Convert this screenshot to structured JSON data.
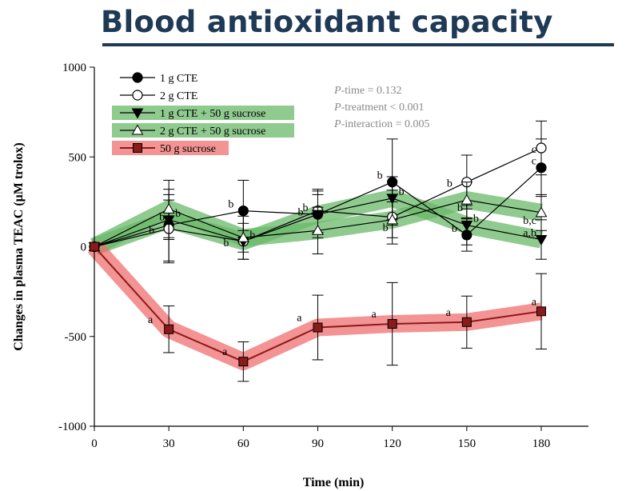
{
  "page": {
    "title": "Blood antioxidant capacity"
  },
  "chart_data": {
    "type": "line",
    "xlabel": "Time (min)",
    "ylabel": "Changes in plasma TEAC (μM trolox)",
    "x": [
      0,
      30,
      60,
      90,
      120,
      150,
      180
    ],
    "xlim": [
      0,
      197
    ],
    "ylim": [
      -1000,
      1000
    ],
    "xticks": [
      0,
      30,
      60,
      90,
      120,
      150,
      180
    ],
    "yticks": [
      1000,
      500,
      0,
      -500,
      -1000
    ],
    "grid": false,
    "legend_position": "top-left",
    "series": [
      {
        "name": "1 g CTE",
        "marker": "circle-filled",
        "color": "#000000",
        "values": [
          0,
          120,
          200,
          180,
          360,
          65,
          440
        ],
        "err": [
          0,
          200,
          170,
          130,
          240,
          90,
          160
        ],
        "labels": [
          "",
          "",
          "b",
          "b",
          "b",
          "b",
          "c"
        ]
      },
      {
        "name": "2 g CTE",
        "marker": "circle-open",
        "color": "#000000",
        "values": [
          0,
          100,
          30,
          200,
          165,
          360,
          550
        ],
        "err": [
          0,
          190,
          100,
          120,
          150,
          150,
          150
        ],
        "labels": [
          "",
          "b",
          "b",
          "b",
          "",
          "b",
          "c"
        ]
      },
      {
        "name": "1 g CTE + 50 g sucrose",
        "marker": "triangle-down-filled",
        "color": "#000000",
        "highlight": "#6ab86a",
        "values": [
          0,
          150,
          30,
          180,
          270,
          120,
          40
        ],
        "err": [
          0,
          110,
          60,
          110,
          120,
          110,
          110
        ],
        "labels": [
          "",
          "b",
          "b",
          "",
          "b",
          "b",
          "a,b"
        ]
      },
      {
        "name": "2 g CTE + 50 g sucrose",
        "marker": "triangle-open",
        "color": "#000000",
        "highlight": "#6ab86a",
        "values": [
          0,
          210,
          50,
          90,
          150,
          260,
          190
        ],
        "err": [
          0,
          160,
          120,
          130,
          100,
          100,
          100
        ],
        "labels": [
          "",
          "b",
          "",
          "",
          "b",
          "b",
          "b,c"
        ]
      },
      {
        "name": "50 g sucrose",
        "marker": "square-filled",
        "color": "#8b1a1a",
        "highlight": "#ef6f6f",
        "values": [
          0,
          -460,
          -640,
          -450,
          -430,
          -420,
          -360
        ],
        "err": [
          0,
          130,
          110,
          180,
          230,
          145,
          210
        ],
        "labels": [
          "",
          "a",
          "a",
          "a",
          "a",
          "a",
          "a"
        ]
      }
    ],
    "annotations": [
      "P-time = 0.132",
      "P-treatment < 0.001",
      "P-interaction = 0.005"
    ]
  }
}
